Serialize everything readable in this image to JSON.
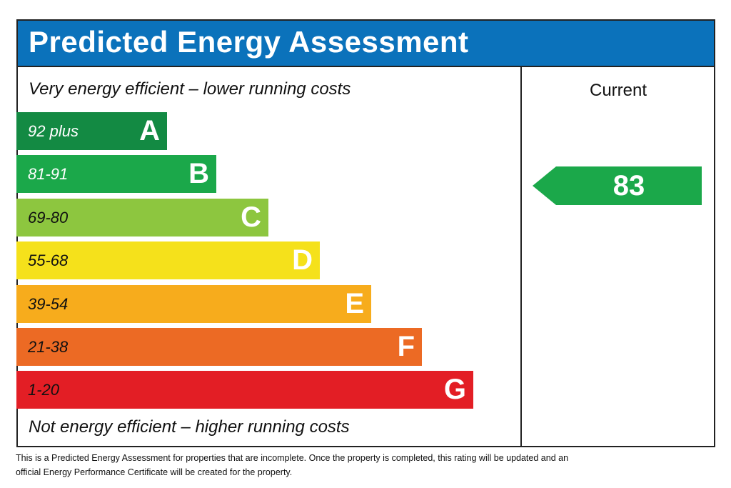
{
  "title": "Predicted Energy Assessment",
  "top_text": "Very energy efficient – lower running costs",
  "bottom_text": "Not energy efficient – higher running costs",
  "bands": [
    {
      "range": "92 plus",
      "letter": "A"
    },
    {
      "range": "81-91",
      "letter": "B"
    },
    {
      "range": "69-80",
      "letter": "C"
    },
    {
      "range": "55-68",
      "letter": "D"
    },
    {
      "range": "39-54",
      "letter": "E"
    },
    {
      "range": "21-38",
      "letter": "F"
    },
    {
      "range": "1-20",
      "letter": "G"
    }
  ],
  "current": {
    "label": "Current",
    "value": 83
  },
  "note": "This is a Predicted Energy Assessment for properties that are incomplete. Once the property is completed, this rating will be updated and an official Energy Performance Certificate will be created for the property."
}
